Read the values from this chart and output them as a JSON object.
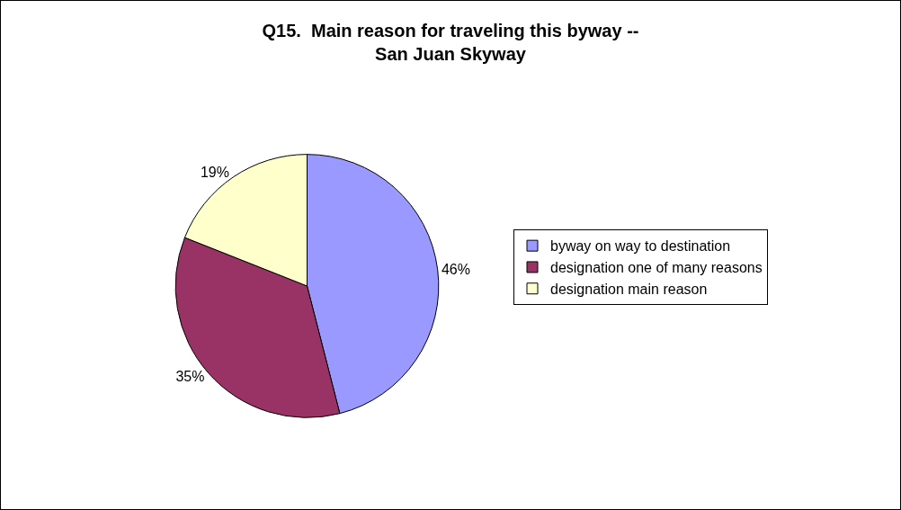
{
  "chart_data": {
    "type": "pie",
    "title": "Q15.  Main reason for traveling this byway --\nSan Juan Skyway",
    "categories": [
      "byway on way to destination",
      "designation one of many reasons",
      "designation main reason"
    ],
    "values": [
      46,
      35,
      19
    ],
    "colors": [
      "#9999ff",
      "#993366",
      "#ffffcc"
    ],
    "value_labels": [
      "46%",
      "35%",
      "19%"
    ],
    "legend": "right"
  }
}
